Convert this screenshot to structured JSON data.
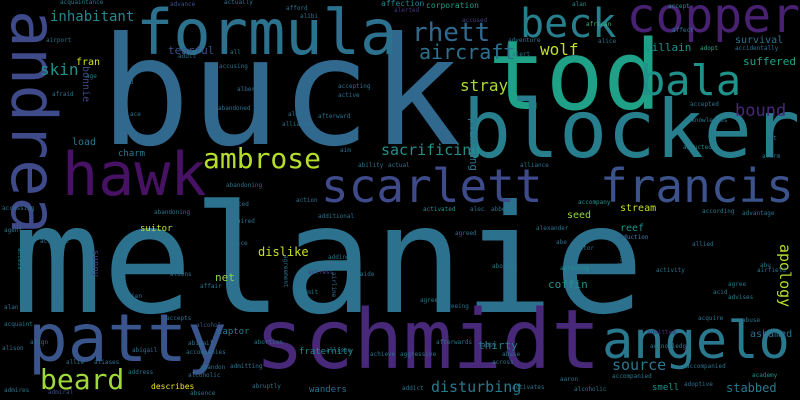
{
  "palette": [
    "#440154",
    "#3b528b",
    "#21918c",
    "#5ec962",
    "#fde725"
  ],
  "words": [
    {
      "text": "melanie",
      "color": "#2c728e"
    },
    {
      "text": "buck",
      "color": "#31688e"
    },
    {
      "text": "tod",
      "color": "#1fa187"
    },
    {
      "text": "schmidt",
      "color": "#482878"
    },
    {
      "text": "blocker",
      "color": "#277f8e"
    },
    {
      "text": "formula",
      "color": "#2c728e"
    },
    {
      "text": "scarlett",
      "color": "#3e4a89"
    },
    {
      "text": "francis",
      "color": "#3b528b"
    },
    {
      "text": "hawk",
      "color": "#471164"
    },
    {
      "text": "andrea",
      "color": "#3e4a89"
    },
    {
      "text": "copper",
      "color": "#482173"
    },
    {
      "text": "patty",
      "color": "#39558c"
    },
    {
      "text": "angelo",
      "color": "#2a788e"
    },
    {
      "text": "beck",
      "color": "#277f8e"
    },
    {
      "text": "bala",
      "color": "#20928c"
    },
    {
      "text": "ambrose",
      "color": "#b5de2b"
    },
    {
      "text": "beard",
      "color": "#a0da39"
    },
    {
      "text": "rhett",
      "color": "#31688e"
    },
    {
      "text": "aircraft",
      "color": "#2c728e"
    },
    {
      "text": "wolf",
      "color": "#bddf26"
    },
    {
      "text": "inhabitant",
      "color": "#23898e"
    },
    {
      "text": "skin",
      "color": "#21918c"
    },
    {
      "text": "stray",
      "color": "#a8db34"
    },
    {
      "text": "sacrificing",
      "color": "#21918c"
    },
    {
      "text": "disturbing",
      "color": "#2a788e"
    },
    {
      "text": "source",
      "color": "#2a788e"
    },
    {
      "text": "bound",
      "color": "#482878"
    },
    {
      "text": "apology",
      "color": "#b5de2b"
    },
    {
      "text": "suffered",
      "color": "#20a386"
    },
    {
      "text": "stabbed",
      "color": "#2a788e"
    },
    {
      "text": "villain",
      "color": "#21918c"
    },
    {
      "text": "survival",
      "color": "#2c728e"
    },
    {
      "text": "thirty",
      "color": "#2a788e"
    },
    {
      "text": "coffin",
      "color": "#21918c"
    },
    {
      "text": "reef",
      "color": "#21918c"
    },
    {
      "text": "stream",
      "color": "#c2df23"
    },
    {
      "text": "seed",
      "color": "#8fd744"
    },
    {
      "text": "ashamed",
      "color": "#2c728e"
    },
    {
      "text": "smell",
      "color": "#21918c"
    },
    {
      "text": "net",
      "color": "#8fd744"
    },
    {
      "text": "dislike",
      "color": "#c8e020"
    },
    {
      "text": "fraternity",
      "color": "#228c8d"
    },
    {
      "text": "wanders",
      "color": "#2c728e"
    },
    {
      "text": "charm",
      "color": "#2a788e"
    },
    {
      "text": "suitor",
      "color": "#c2df23"
    },
    {
      "text": "tearful",
      "color": "#3b528b"
    },
    {
      "text": "captor",
      "color": "#2a788e"
    },
    {
      "text": "bonnie",
      "color": "#3e4a89"
    },
    {
      "text": "pointing",
      "color": "#2c728e"
    },
    {
      "text": "fran",
      "color": "#d2e21b"
    },
    {
      "text": "load",
      "color": "#2a788e"
    },
    {
      "text": "sunny",
      "color": "#433e85"
    },
    {
      "text": "corporation",
      "color": "#1fa187"
    },
    {
      "text": "describes",
      "color": "#f1e51d"
    },
    {
      "text": "affection",
      "color": "#26828e"
    },
    {
      "text": "acquaintance",
      "color": "#2a788e"
    },
    {
      "text": "advance",
      "color": "#3b528b"
    },
    {
      "text": "actually",
      "color": "#2c728e"
    },
    {
      "text": "afford",
      "color": "#2c728e"
    },
    {
      "text": "alerted",
      "color": "#46337f"
    },
    {
      "text": "accused",
      "color": "#433e85"
    },
    {
      "text": "alan",
      "color": "#21918c"
    },
    {
      "text": "african",
      "color": "#35b779"
    },
    {
      "text": "accept",
      "color": "#21918c"
    },
    {
      "text": "adopt",
      "color": "#22a884"
    },
    {
      "text": "accidentally",
      "color": "#2c728e"
    },
    {
      "text": "acknowledges",
      "color": "#2a788e"
    },
    {
      "text": "accepted",
      "color": "#2c728e"
    },
    {
      "text": "abducted",
      "color": "#26828e"
    },
    {
      "text": "accompany",
      "color": "#21918c"
    },
    {
      "text": "according",
      "color": "#2a788e"
    },
    {
      "text": "advantage",
      "color": "#2c728e"
    },
    {
      "text": "abduction",
      "color": "#46337f"
    },
    {
      "text": "accompanied",
      "color": "#2a788e"
    },
    {
      "text": "adoptive",
      "color": "#2c728e"
    },
    {
      "text": "academy",
      "color": "#20928c"
    },
    {
      "text": "advises",
      "color": "#2a788e"
    },
    {
      "text": "acknowledge",
      "color": "#2a788e"
    },
    {
      "text": "admitted",
      "color": "#482878"
    },
    {
      "text": "activity",
      "color": "#2c728e"
    },
    {
      "text": "agreed",
      "color": "#2c728e"
    },
    {
      "text": "alexander",
      "color": "#2c728e"
    },
    {
      "text": "actor",
      "color": "#2c728e"
    },
    {
      "text": "agreeing",
      "color": "#21918c"
    },
    {
      "text": "aboard",
      "color": "#2a788e"
    },
    {
      "text": "abe",
      "color": "#2c728e"
    },
    {
      "text": "abbey",
      "color": "#2c728e"
    },
    {
      "text": "activated",
      "color": "#21918c"
    },
    {
      "text": "adding",
      "color": "#2c728e"
    },
    {
      "text": "additional",
      "color": "#2c728e"
    },
    {
      "text": "actress",
      "color": "#433e85"
    },
    {
      "text": "admit",
      "color": "#2a788e"
    },
    {
      "text": "albert",
      "color": "#2c728e"
    },
    {
      "text": "advice",
      "color": "#2c728e"
    },
    {
      "text": "acquired",
      "color": "#2c728e"
    },
    {
      "text": "abandoning",
      "color": "#2c728e"
    },
    {
      "text": "advanced",
      "color": "#2c728e"
    },
    {
      "text": "accident",
      "color": "#2c728e"
    },
    {
      "text": "accepts",
      "color": "#2c728e"
    },
    {
      "text": "alcohol",
      "color": "#3b528b"
    },
    {
      "text": "abigail",
      "color": "#2c728e"
    },
    {
      "text": "accompanies",
      "color": "#2c728e"
    },
    {
      "text": "abandon",
      "color": "#2c728e"
    },
    {
      "text": "alcoholic",
      "color": "#2c728e"
    },
    {
      "text": "admitting",
      "color": "#2c728e"
    },
    {
      "text": "absence",
      "color": "#2c728e"
    },
    {
      "text": "abruptly",
      "color": "#2c728e"
    },
    {
      "text": "address",
      "color": "#2c728e"
    },
    {
      "text": "admiral",
      "color": "#3e4a89"
    },
    {
      "text": "allie",
      "color": "#2c728e"
    },
    {
      "text": "alison",
      "color": "#2c728e"
    },
    {
      "text": "allison",
      "color": "#2c728e"
    },
    {
      "text": "alan",
      "color": "#2c728e"
    },
    {
      "text": "addict",
      "color": "#2c728e"
    },
    {
      "text": "aggressive",
      "color": "#2c728e"
    },
    {
      "text": "achieve",
      "color": "#2c728e"
    },
    {
      "text": "abuse",
      "color": "#2c728e"
    },
    {
      "text": "abby",
      "color": "#2c728e"
    },
    {
      "text": "across",
      "color": "#2c728e"
    },
    {
      "text": "activates",
      "color": "#2c728e"
    },
    {
      "text": "aaron",
      "color": "#2c728e"
    },
    {
      "text": "alcoholic",
      "color": "#2c728e"
    },
    {
      "text": "affair",
      "color": "#2c728e"
    },
    {
      "text": "accusing",
      "color": "#2c728e"
    },
    {
      "text": "abandoned",
      "color": "#2c728e"
    },
    {
      "text": "accepting",
      "color": "#2c728e"
    },
    {
      "text": "active",
      "color": "#2c728e"
    },
    {
      "text": "afterward",
      "color": "#2c728e"
    },
    {
      "text": "alex",
      "color": "#2c728e"
    },
    {
      "text": "alliance",
      "color": "#2c728e"
    },
    {
      "text": "ability",
      "color": "#2c728e"
    },
    {
      "text": "actual",
      "color": "#2c728e"
    },
    {
      "text": "action",
      "color": "#2c728e"
    },
    {
      "text": "alliance",
      "color": "#2c728e"
    },
    {
      "text": "aide",
      "color": "#2c728e"
    },
    {
      "text": "alec",
      "color": "#2c728e"
    },
    {
      "text": "airfield",
      "color": "#2c728e"
    },
    {
      "text": "alarm",
      "color": "#2c728e"
    },
    {
      "text": "alibi",
      "color": "#2c728e"
    },
    {
      "text": "adult",
      "color": "#2c728e"
    },
    {
      "text": "airport",
      "color": "#2c728e"
    },
    {
      "text": "afraid",
      "color": "#2c728e"
    },
    {
      "text": "age",
      "color": "#2c728e"
    },
    {
      "text": "alert",
      "color": "#2c728e"
    },
    {
      "text": "adventure",
      "color": "#2c728e"
    },
    {
      "text": "affect",
      "color": "#2c728e"
    },
    {
      "text": "alice",
      "color": "#2c728e"
    },
    {
      "text": "abduction",
      "color": "#2c728e"
    },
    {
      "text": "agree",
      "color": "#2c728e"
    },
    {
      "text": "agency",
      "color": "#2c728e"
    },
    {
      "text": "acquire",
      "color": "#2c728e"
    },
    {
      "text": "acid",
      "color": "#2c728e"
    },
    {
      "text": "abuse",
      "color": "#2c728e"
    },
    {
      "text": "accompanied",
      "color": "#2c728e"
    },
    {
      "text": "abu",
      "color": "#2c728e"
    },
    {
      "text": "act",
      "color": "#2c728e"
    },
    {
      "text": "agreement",
      "color": "#2c728e"
    },
    {
      "text": "abandoning",
      "color": "#2c728e"
    },
    {
      "text": "ad",
      "color": "#2c728e"
    },
    {
      "text": "ace",
      "color": "#2c728e"
    },
    {
      "text": "airplane",
      "color": "#2c728e"
    },
    {
      "text": "agent",
      "color": "#2c728e"
    },
    {
      "text": "alien",
      "color": "#2c728e"
    },
    {
      "text": "abortion",
      "color": "#2c728e"
    },
    {
      "text": "abigail",
      "color": "#2c728e"
    },
    {
      "text": "accessing",
      "color": "#2c728e"
    },
    {
      "text": "access",
      "color": "#2c728e"
    },
    {
      "text": "align",
      "color": "#2c728e"
    },
    {
      "text": "agreed",
      "color": "#2c728e"
    },
    {
      "text": "aliens",
      "color": "#2c728e"
    },
    {
      "text": "airline",
      "color": "#2c728e"
    },
    {
      "text": "agreeing",
      "color": "#2c728e"
    },
    {
      "text": "acquaint",
      "color": "#2c728e"
    },
    {
      "text": "aim",
      "color": "#2c728e"
    },
    {
      "text": "all",
      "color": "#2c728e"
    },
    {
      "text": "allied",
      "color": "#2c728e"
    },
    {
      "text": "aliases",
      "color": "#2c728e"
    },
    {
      "text": "afterwards",
      "color": "#2c728e"
    },
    {
      "text": "admires",
      "color": "#2c728e"
    }
  ]
}
